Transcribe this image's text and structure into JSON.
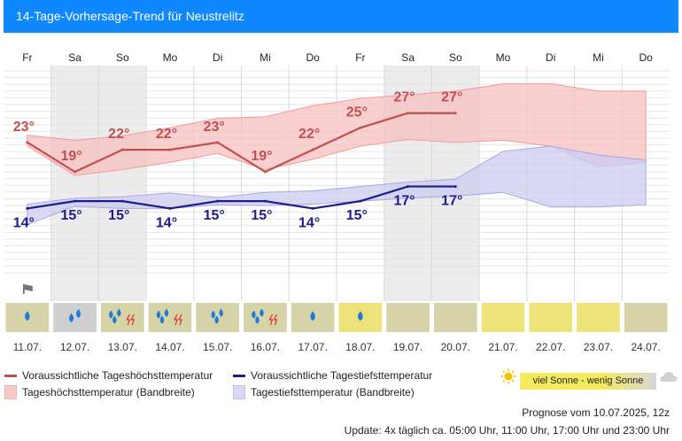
{
  "header": {
    "title": "14-Tage-Vorhersage-Trend für Neustrelitz"
  },
  "chart_data": {
    "type": "line",
    "weekdays": [
      "Fr",
      "Sa",
      "So",
      "Mo",
      "Di",
      "Mi",
      "Do",
      "Fr",
      "Sa",
      "So",
      "Mo",
      "Di",
      "Mi",
      "Do"
    ],
    "dates": [
      "11.07.",
      "12.07.",
      "13.07.",
      "14.07.",
      "15.07.",
      "16.07.",
      "17.07.",
      "18.07.",
      "19.07.",
      "20.07.",
      "21.07.",
      "22.07.",
      "23.07.",
      "24.07."
    ],
    "weekend_shaded": [
      false,
      true,
      true,
      false,
      false,
      false,
      false,
      false,
      true,
      true,
      false,
      false,
      false,
      false
    ],
    "ylim": [
      5,
      33
    ],
    "series": [
      {
        "name": "Voraussichtliche Tageshöchsttemperatur",
        "color": "#c0504d",
        "values": [
          23,
          19,
          22,
          22,
          23,
          19,
          22,
          25,
          27,
          27,
          null,
          null,
          null,
          null
        ],
        "labels": [
          "23°",
          "19°",
          "22°",
          "22°",
          "23°",
          "19°",
          "22°",
          "25°",
          "27°",
          "27°",
          "",
          "",
          "",
          ""
        ]
      },
      {
        "name": "Voraussichtliche Tagestiefsttemperatur",
        "color": "#1c1c8c",
        "values": [
          14,
          15,
          15,
          14,
          15,
          15,
          14,
          15,
          17,
          17,
          null,
          null,
          null,
          null
        ],
        "labels": [
          "14°",
          "15°",
          "15°",
          "14°",
          "15°",
          "15°",
          "14°",
          "15°",
          "17°",
          "17°",
          "",
          "",
          "",
          ""
        ]
      }
    ],
    "bands": [
      {
        "name": "Tageshöchsttemperatur (Bandbreite)",
        "color": "#f7c0c0",
        "upper": [
          24,
          23.3,
          23.9,
          25,
          26.3,
          26.5,
          28,
          29,
          29.5,
          30,
          31,
          31,
          30,
          30
        ],
        "lower": [
          22.5,
          18.5,
          19.3,
          20.3,
          21.5,
          19.3,
          20.7,
          22.5,
          23.4,
          23,
          23.3,
          22.5,
          19.7,
          20.3
        ]
      },
      {
        "name": "Tagestiefsttemperatur (Bandbreite)",
        "color": "#ccccf0",
        "upper": [
          14.6,
          15.4,
          15.6,
          16.1,
          15.5,
          16.2,
          16.4,
          17,
          17.6,
          18,
          21.8,
          22.5,
          21.3,
          20.6
        ],
        "lower": [
          11.8,
          14.3,
          14,
          14,
          14.5,
          14.4,
          14.6,
          15,
          15.4,
          15.7,
          16.2,
          14.2,
          14.2,
          14.5
        ]
      }
    ],
    "icons": [
      {
        "bg": "#d6d3a8",
        "symbol": "drop-1"
      },
      {
        "bg": "#cfcfcf",
        "symbol": "drop-2"
      },
      {
        "bg": "#d6d3a8",
        "symbol": "drop-3-thunder"
      },
      {
        "bg": "#d6d3a8",
        "symbol": "drop-3-thunder"
      },
      {
        "bg": "#d6d3a8",
        "symbol": "drop-3"
      },
      {
        "bg": "#d6d3a8",
        "symbol": "drop-3-thunder"
      },
      {
        "bg": "#d6d3a8",
        "symbol": "drop-1"
      },
      {
        "bg": "#ede37a",
        "symbol": "drop-1"
      },
      {
        "bg": "#d6d3a8",
        "symbol": "none"
      },
      {
        "bg": "#d6d3a8",
        "symbol": "none"
      },
      {
        "bg": "#ede37a",
        "symbol": "none"
      },
      {
        "bg": "#ede37a",
        "symbol": "none"
      },
      {
        "bg": "#ede37a",
        "symbol": "none"
      },
      {
        "bg": "#d6d3a8",
        "symbol": "none"
      }
    ],
    "wind_day_index": 0
  },
  "legend": {
    "max_line": "Voraussichtliche Tageshöchsttemperatur",
    "min_line": "Voraussichtliche Tagestiefsttemperatur",
    "max_band": "Tageshöchsttemperatur (Bandbreite)",
    "min_band": "Tagestiefsttemperatur (Bandbreite)",
    "sun_scale": "viel Sonne - wenig Sonne"
  },
  "footer": {
    "forecast": "Prognose vom 10.07.2025, 12z",
    "update": "Update: 4x täglich ca. 05:00 Uhr, 11:00 Uhr, 17:00 Uhr und 23:00 Uhr"
  }
}
